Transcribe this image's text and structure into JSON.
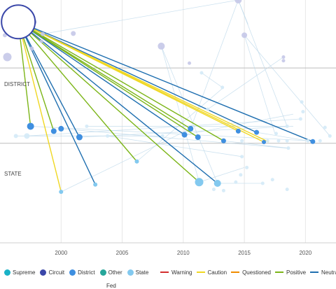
{
  "chart_data": {
    "type": "scatter",
    "title": "",
    "xlabel": "",
    "ylabel": "",
    "xlim": [
      1995,
      2022.5
    ],
    "x_ticks": [
      2000,
      2005,
      2010,
      2015,
      2020
    ],
    "bands": [
      {
        "name": "",
        "y_range": [
          0,
          0.28
        ]
      },
      {
        "name": "DISTRICT",
        "y_range": [
          0.28,
          0.59
        ]
      },
      {
        "name": "STATE",
        "y_range": [
          0.59,
          1.0
        ]
      }
    ],
    "colors": {
      "Supreme": "#19b2c7",
      "Circuit": "#3a47a9",
      "District": "#3f8fe0",
      "Other": "#26a69a",
      "State": "#83c9ef",
      "Warning": "#d32f2f",
      "Caution": "#f0d722",
      "Questioned": "#f08c00",
      "Positive": "#7cb518",
      "Neutral": "#1f6fb0"
    },
    "legend": {
      "courts": [
        "Supreme",
        "Circuit",
        "District",
        "Other",
        "Fed",
        "State"
      ],
      "treatments": [
        "Warning",
        "Caution",
        "Questioned",
        "Positive",
        "Neutral"
      ]
    },
    "focal": {
      "x": 1996.5,
      "y": 0.09,
      "r": 24
    },
    "points": [
      {
        "x": 1997.5,
        "y": 0.09,
        "r": 8,
        "court": "Circuit",
        "faded": false
      },
      {
        "x": 1997.5,
        "y": 0.52,
        "r": 5,
        "court": "District",
        "faded": false
      },
      {
        "x": 1999.4,
        "y": 0.54,
        "r": 4,
        "court": "District",
        "faded": false
      },
      {
        "x": 2000.0,
        "y": 0.53,
        "r": 4,
        "court": "District",
        "faded": false
      },
      {
        "x": 2001.5,
        "y": 0.565,
        "r": 4.5,
        "court": "District",
        "faded": false
      },
      {
        "x": 2000.0,
        "y": 0.79,
        "r": 3,
        "court": "State",
        "faded": false
      },
      {
        "x": 2002.8,
        "y": 0.76,
        "r": 3,
        "court": "State",
        "faded": false
      },
      {
        "x": 2006.2,
        "y": 0.665,
        "r": 3,
        "court": "State",
        "faded": false
      },
      {
        "x": 2010.6,
        "y": 0.53,
        "r": 4,
        "court": "District",
        "faded": false
      },
      {
        "x": 2010.1,
        "y": 0.555,
        "r": 4,
        "court": "District",
        "faded": false
      },
      {
        "x": 2011.2,
        "y": 0.565,
        "r": 4,
        "court": "District",
        "faded": false
      },
      {
        "x": 2011.3,
        "y": 0.75,
        "r": 6,
        "court": "State",
        "faded": false
      },
      {
        "x": 2012.8,
        "y": 0.755,
        "r": 5,
        "court": "State",
        "faded": false
      },
      {
        "x": 2013.3,
        "y": 0.58,
        "r": 3.5,
        "court": "District",
        "faded": false
      },
      {
        "x": 2014.5,
        "y": 0.54,
        "r": 3.5,
        "court": "District",
        "faded": false
      },
      {
        "x": 2016.0,
        "y": 0.545,
        "r": 3.5,
        "court": "District",
        "faded": false
      },
      {
        "x": 2016.6,
        "y": 0.585,
        "r": 3,
        "court": "District",
        "faded": false
      },
      {
        "x": 2020.6,
        "y": 0.583,
        "r": 3.5,
        "court": "District",
        "faded": false
      },
      {
        "x": 1995.6,
        "y": 0.235,
        "r": 6,
        "court": "Circuit",
        "faded": true
      },
      {
        "x": 1995.4,
        "y": 0.145,
        "r": 3,
        "court": "Circuit",
        "faded": true
      },
      {
        "x": 1998.5,
        "y": 0.14,
        "r": 3,
        "court": "Circuit",
        "faded": true
      },
      {
        "x": 1997.6,
        "y": 0.2,
        "r": 3,
        "court": "Circuit",
        "faded": true
      },
      {
        "x": 1998.4,
        "y": 0.17,
        "r": 2.5,
        "court": "Circuit",
        "faded": true
      },
      {
        "x": 2001.0,
        "y": 0.138,
        "r": 3.5,
        "court": "Circuit",
        "faded": true
      },
      {
        "x": 2008.2,
        "y": 0.19,
        "r": 5,
        "court": "Circuit",
        "faded": true
      },
      {
        "x": 2010.5,
        "y": 0.26,
        "r": 2.5,
        "court": "Circuit",
        "faded": true
      },
      {
        "x": 2015.0,
        "y": 0.145,
        "r": 4,
        "court": "Circuit",
        "faded": true
      },
      {
        "x": 2014.5,
        "y": 0.0,
        "r": 5,
        "court": "Circuit",
        "faded": true
      },
      {
        "x": 2018.2,
        "y": 0.235,
        "r": 2.5,
        "court": "Circuit",
        "faded": true
      },
      {
        "x": 2018.2,
        "y": 0.25,
        "r": 2.5,
        "court": "Circuit",
        "faded": true
      },
      {
        "x": 1996.3,
        "y": 0.56,
        "r": 3,
        "court": "State",
        "faded": true
      },
      {
        "x": 1997.2,
        "y": 0.56,
        "r": 4,
        "court": "State",
        "faded": true
      },
      {
        "x": 2002.1,
        "y": 0.52,
        "r": 2.5,
        "court": "State",
        "faded": true
      },
      {
        "x": 2003.8,
        "y": 0.56,
        "r": 2.5,
        "court": "State",
        "faded": true
      },
      {
        "x": 2008.3,
        "y": 0.56,
        "r": 2.5,
        "court": "State",
        "faded": true
      },
      {
        "x": 2011.5,
        "y": 0.3,
        "r": 2.5,
        "court": "State",
        "faded": true
      },
      {
        "x": 2012.0,
        "y": 0.45,
        "r": 2.5,
        "court": "State",
        "faded": true
      },
      {
        "x": 2013.2,
        "y": 0.36,
        "r": 2.5,
        "court": "State",
        "faded": true
      },
      {
        "x": 2014.8,
        "y": 0.58,
        "r": 2.5,
        "court": "State",
        "faded": true
      },
      {
        "x": 2016.9,
        "y": 0.58,
        "r": 2.5,
        "court": "State",
        "faded": true
      },
      {
        "x": 2017.6,
        "y": 0.55,
        "r": 2.5,
        "court": "State",
        "faded": true
      },
      {
        "x": 2017.8,
        "y": 0.58,
        "r": 2.5,
        "court": "State",
        "faded": true
      },
      {
        "x": 2018.5,
        "y": 0.58,
        "r": 2.5,
        "court": "State",
        "faded": true
      },
      {
        "x": 2018.6,
        "y": 0.61,
        "r": 2.5,
        "court": "State",
        "faded": true
      },
      {
        "x": 2018.5,
        "y": 0.52,
        "r": 2.5,
        "court": "State",
        "faded": true
      },
      {
        "x": 2019.7,
        "y": 0.42,
        "r": 2.5,
        "court": "State",
        "faded": true
      },
      {
        "x": 2019.8,
        "y": 0.46,
        "r": 2.5,
        "court": "State",
        "faded": true
      },
      {
        "x": 2019.6,
        "y": 0.49,
        "r": 2.5,
        "court": "State",
        "faded": true
      },
      {
        "x": 2020.2,
        "y": 0.58,
        "r": 2.5,
        "court": "State",
        "faded": true
      },
      {
        "x": 2021.2,
        "y": 0.58,
        "r": 2.5,
        "court": "State",
        "faded": true
      },
      {
        "x": 2021.6,
        "y": 0.525,
        "r": 2.5,
        "court": "State",
        "faded": true
      },
      {
        "x": 2022.0,
        "y": 0.56,
        "r": 2.5,
        "court": "State",
        "faded": true
      },
      {
        "x": 2014.8,
        "y": 0.645,
        "r": 2.5,
        "court": "State",
        "faded": true
      },
      {
        "x": 2014.7,
        "y": 0.72,
        "r": 2.5,
        "court": "State",
        "faded": true
      },
      {
        "x": 2015.2,
        "y": 0.69,
        "r": 2.5,
        "court": "State",
        "faded": true
      },
      {
        "x": 2016.5,
        "y": 0.755,
        "r": 2.5,
        "court": "State",
        "faded": true
      },
      {
        "x": 2017.3,
        "y": 0.74,
        "r": 2.5,
        "court": "State",
        "faded": true
      },
      {
        "x": 2018.5,
        "y": 0.78,
        "r": 2.5,
        "court": "State",
        "faded": true
      },
      {
        "x": 2012.5,
        "y": 0.78,
        "r": 2.5,
        "court": "State",
        "faded": true
      },
      {
        "x": 2013.3,
        "y": 0.785,
        "r": 2.5,
        "court": "State",
        "faded": true
      },
      {
        "x": 2014.3,
        "y": 0.75,
        "r": 2.5,
        "court": "State",
        "faded": true
      }
    ],
    "citations": [
      {
        "to": [
          1997.5,
          0.52
        ],
        "treatment": "Positive"
      },
      {
        "to": [
          2000.0,
          0.79
        ],
        "treatment": "Caution"
      },
      {
        "to": [
          1999.4,
          0.54
        ],
        "treatment": "Positive"
      },
      {
        "to": [
          2001.5,
          0.565
        ],
        "treatment": "Neutral"
      },
      {
        "to": [
          2002.8,
          0.76
        ],
        "treatment": "Neutral"
      },
      {
        "to": [
          2006.2,
          0.665
        ],
        "treatment": "Positive"
      },
      {
        "to": [
          2010.1,
          0.555
        ],
        "treatment": "Neutral"
      },
      {
        "to": [
          2010.6,
          0.53
        ],
        "treatment": "Positive"
      },
      {
        "to": [
          2011.2,
          0.565
        ],
        "treatment": "Positive"
      },
      {
        "to": [
          2011.3,
          0.75
        ],
        "treatment": "Positive"
      },
      {
        "to": [
          2012.8,
          0.755
        ],
        "treatment": "Neutral"
      },
      {
        "to": [
          2013.3,
          0.58
        ],
        "treatment": "Positive"
      },
      {
        "to": [
          2014.5,
          0.54
        ],
        "treatment": "Caution"
      },
      {
        "to": [
          2016.0,
          0.545
        ],
        "treatment": "Neutral"
      },
      {
        "to": [
          2016.6,
          0.585
        ],
        "treatment": "Caution"
      },
      {
        "to": [
          2017.0,
          0.585
        ],
        "treatment": "Caution"
      },
      {
        "to": [
          2020.6,
          0.583
        ],
        "treatment": "Neutral"
      }
    ],
    "background_links": [
      [
        [
          1997.5,
          0.52
        ],
        [
          2020.4,
          0.58
        ]
      ],
      [
        [
          2000.0,
          0.53
        ],
        [
          2018.5,
          0.61
        ]
      ],
      [
        [
          2001.5,
          0.565
        ],
        [
          2019.0,
          0.52
        ]
      ],
      [
        [
          2008.2,
          0.19
        ],
        [
          2012.8,
          0.755
        ]
      ],
      [
        [
          2008.2,
          0.19
        ],
        [
          2011.3,
          0.75
        ]
      ],
      [
        [
          2015.0,
          0.145
        ],
        [
          2017.5,
          0.55
        ]
      ],
      [
        [
          2014.5,
          0.0
        ],
        [
          2018.5,
          0.52
        ]
      ],
      [
        [
          2014.5,
          0.0
        ],
        [
          2015.3,
          0.1
        ]
      ],
      [
        [
          2015.0,
          0.145
        ],
        [
          2022.0,
          0.56
        ]
      ],
      [
        [
          1998.5,
          0.14
        ],
        [
          2014.5,
          0.0
        ]
      ],
      [
        [
          2010.6,
          0.53
        ],
        [
          2014.5,
          0.0
        ]
      ],
      [
        [
          2006.2,
          0.665
        ],
        [
          2013.3,
          0.36
        ]
      ],
      [
        [
          2011.3,
          0.75
        ],
        [
          2015.0,
          0.69
        ]
      ],
      [
        [
          2012.8,
          0.755
        ],
        [
          2016.5,
          0.755
        ]
      ],
      [
        [
          2002.1,
          0.52
        ],
        [
          2018.5,
          0.52
        ]
      ],
      [
        [
          1996.3,
          0.56
        ],
        [
          2008.3,
          0.56
        ]
      ],
      [
        [
          2003.8,
          0.56
        ],
        [
          2014.8,
          0.645
        ]
      ],
      [
        [
          2010.1,
          0.555
        ],
        [
          2019.0,
          0.47
        ]
      ],
      [
        [
          2016.0,
          0.545
        ],
        [
          2020.2,
          0.58
        ]
      ],
      [
        [
          2000.0,
          0.79
        ],
        [
          2010.6,
          0.53
        ]
      ],
      [
        [
          2012.0,
          0.45
        ],
        [
          2018.2,
          0.235
        ]
      ],
      [
        [
          2013.2,
          0.36
        ],
        [
          2011.5,
          0.3
        ]
      ],
      [
        [
          1997.2,
          0.56
        ],
        [
          2019.6,
          0.49
        ]
      ],
      [
        [
          2013.3,
          0.58
        ],
        [
          2018.6,
          0.61
        ]
      ]
    ]
  }
}
